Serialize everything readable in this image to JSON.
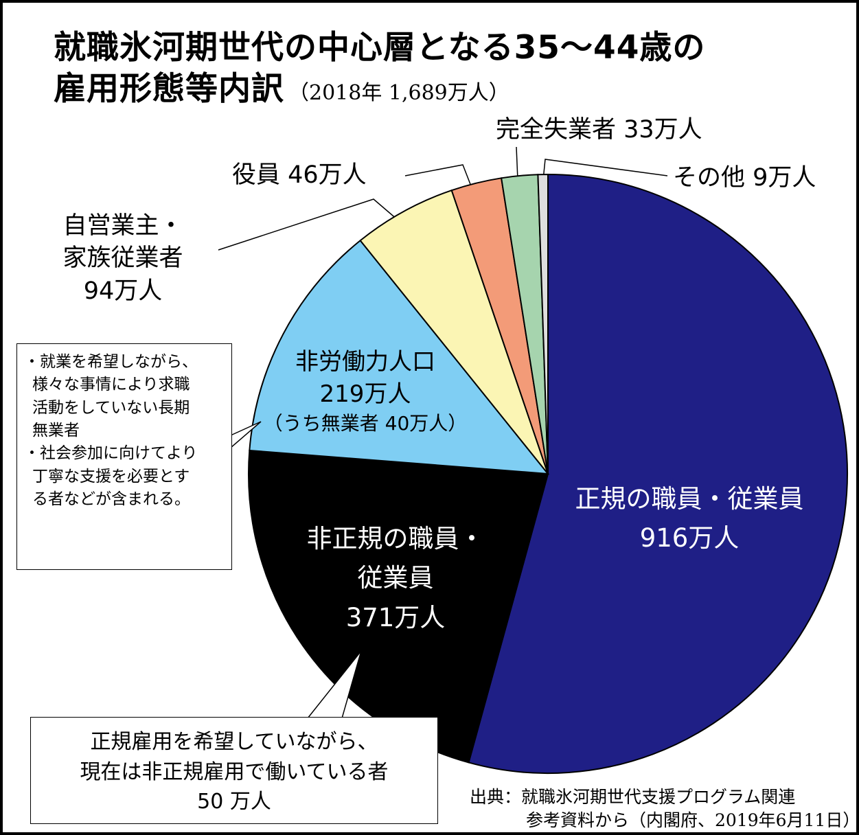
{
  "header": {
    "title_line1": "就職氷河期世代の中心層となる35～44歳の",
    "title_line2": "雇用形態等内訳",
    "title_sub": "（2018年 1,689万人）"
  },
  "chart_data": {
    "type": "pie",
    "total": 1689,
    "unit": "万人",
    "slices": [
      {
        "label": "正規の職員・従業員",
        "value": 916,
        "color": "#1f1f86"
      },
      {
        "label": "非正規の職員・従業員",
        "value": 371,
        "color": "#000000"
      },
      {
        "label": "非労働力人口",
        "value": 219,
        "color": "#7fcef3"
      },
      {
        "label": "自営業主・家族従業者",
        "value": 94,
        "color": "#fbf5b4"
      },
      {
        "label": "役員",
        "value": 46,
        "color": "#f39b78"
      },
      {
        "label": "完全失業者",
        "value": 33,
        "color": "#a6d4ae"
      },
      {
        "label": "その他",
        "value": 9,
        "color": "#dedede"
      }
    ]
  },
  "labels": {
    "seiki": {
      "line1": "正規の職員・従業員",
      "line2": "916万人"
    },
    "hiseiki": {
      "line1": "非正規の職員・",
      "line2": "従業員",
      "line3": "371万人"
    },
    "hirodo": {
      "line1": "非労働力人口",
      "line2": "219万人",
      "line3": "（うち無業者 40万人）"
    },
    "jiei": {
      "line1": "自営業主・",
      "line2": "家族従業者",
      "line3": "94万人"
    },
    "yakuin": "役員 46万人",
    "shitsugyo": "完全失業者 33万人",
    "sonota": "その他 9万人"
  },
  "note_left": {
    "b1_l1": "・就業を希望しながら、",
    "b1_l2": "様々な事情により求職",
    "b1_l3": "活動をしていない長期",
    "b1_l4": "無業者",
    "b2_l1": "・社会参加に向けてより",
    "b2_l2": "丁寧な支援を必要とす",
    "b2_l3": "る者などが含まれる。"
  },
  "note_bottom": {
    "line1": "正規雇用を希望していながら、",
    "line2": "現在は非正規雇用で働いている者",
    "line3": "50 万人"
  },
  "source": {
    "line1": "出典：就職氷河期世代支援プログラム関連",
    "line2": "参考資料から（内閣府、2019年6月11日）"
  }
}
